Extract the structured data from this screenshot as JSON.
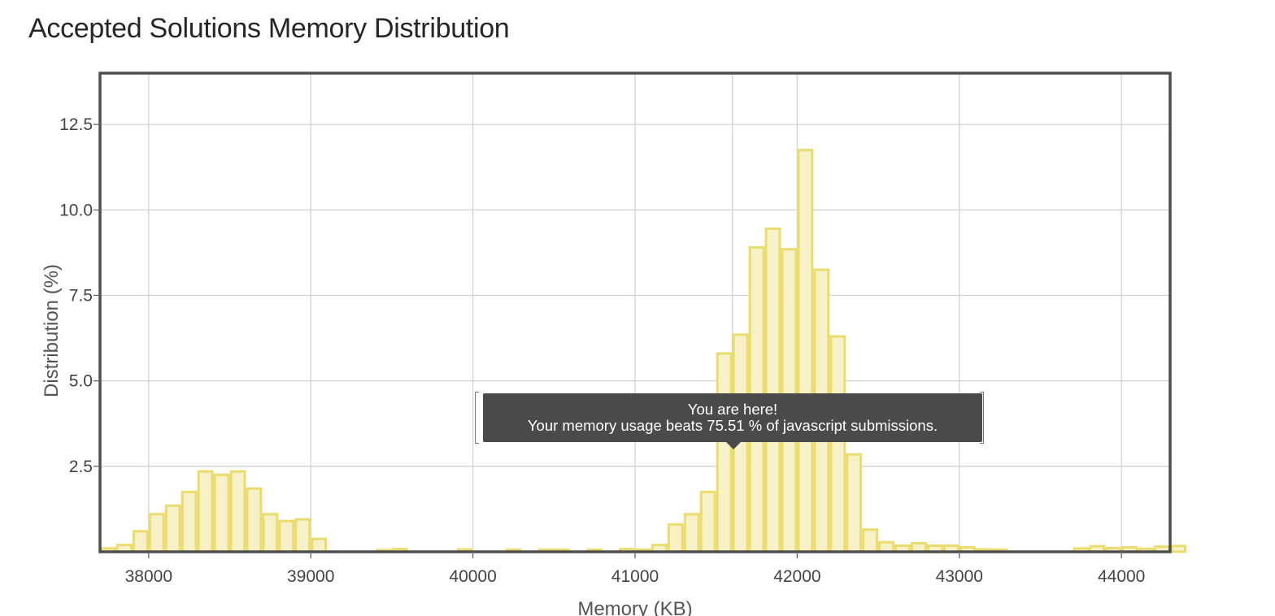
{
  "page": {
    "title": "Accepted Solutions Memory Distribution"
  },
  "tooltip": {
    "line1": "You are here!",
    "line2": "Your memory usage beats 75.51 % of javascript submissions."
  },
  "colors": {
    "bar_fill": "#f6f1c6",
    "bar_stroke": "#ebdc6e",
    "grid": "#d2d2d2",
    "frame": "#4f4f4f"
  },
  "chart_data": {
    "type": "bar",
    "xlabel": "Memory (KB)",
    "ylabel": "Distribution (%)",
    "xlim": [
      37700,
      44300
    ],
    "ylim": [
      0,
      14
    ],
    "bin_width": 100,
    "x_ticks": [
      38000,
      39000,
      40000,
      41000,
      42000,
      43000,
      44000
    ],
    "y_ticks": [
      2.5,
      5.0,
      7.5,
      10.0,
      12.5
    ],
    "y_tick_labels": [
      "2.5",
      "5.0",
      "7.5",
      "10.0",
      "12.5"
    ],
    "x": [
      37700,
      37800,
      37900,
      38000,
      38100,
      38200,
      38300,
      38400,
      38500,
      38600,
      38700,
      38800,
      38900,
      39000,
      39400,
      39500,
      39900,
      40200,
      40400,
      40500,
      40700,
      40900,
      41000,
      41100,
      41200,
      41300,
      41400,
      41500,
      41600,
      41700,
      41800,
      41900,
      42000,
      42100,
      42200,
      42300,
      42400,
      42500,
      42600,
      42700,
      42800,
      42900,
      43000,
      43100,
      43200,
      43700,
      43800,
      43900,
      44000,
      44100,
      44200,
      44300
    ],
    "values": [
      0.1,
      0.2,
      0.6,
      1.1,
      1.35,
      1.75,
      2.35,
      2.25,
      2.35,
      1.85,
      1.1,
      0.9,
      0.95,
      0.38,
      0.05,
      0.08,
      0.07,
      0.06,
      0.06,
      0.06,
      0.06,
      0.08,
      0.06,
      0.2,
      0.8,
      1.1,
      1.75,
      5.8,
      6.35,
      8.9,
      9.45,
      8.85,
      11.75,
      8.25,
      6.3,
      2.85,
      0.65,
      0.28,
      0.18,
      0.25,
      0.18,
      0.18,
      0.13,
      0.07,
      0.06,
      0.1,
      0.16,
      0.11,
      0.13,
      0.09,
      0.15,
      0.17
    ],
    "marker": {
      "x": 41600,
      "label": "You are here!"
    }
  }
}
